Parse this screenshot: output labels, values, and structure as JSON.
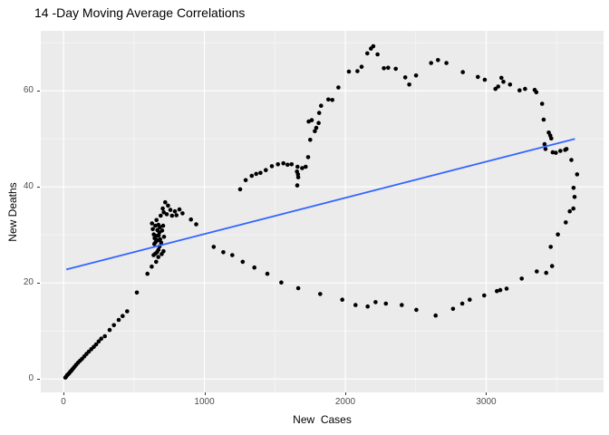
{
  "title": "14 -Day Moving Average Correlations",
  "chart_data": {
    "type": "scatter",
    "title": "14 -Day Moving Average Correlations",
    "xlabel": "New  Cases",
    "ylabel": "New Deaths",
    "x_ticks": [
      0,
      1000,
      2000,
      3000
    ],
    "y_ticks": [
      0,
      20,
      40,
      60
    ],
    "x_minor": [
      500,
      1500,
      2500,
      3500
    ],
    "y_minor": [
      10,
      30,
      50,
      70
    ],
    "xlim": [
      -161,
      3833
    ],
    "ylim": [
      -2.8,
      72.5
    ],
    "grid": true,
    "legend": "none",
    "panel_bg": "#EBEBEB",
    "grid_major_color": "#FFFFFF",
    "grid_minor_color": "#F5F5F5",
    "point_color": "#000000",
    "tick_label_color": "#4D4D4D",
    "trend_line": {
      "type": "linear",
      "color": "#3366FF",
      "x1": 20,
      "y1": 22.8,
      "x2": 3630,
      "y2": 50.0
    },
    "points": [
      [
        13,
        0.3
      ],
      [
        20,
        0.5
      ],
      [
        27,
        0.8
      ],
      [
        34,
        1.0
      ],
      [
        41,
        1.2
      ],
      [
        48,
        1.5
      ],
      [
        55,
        1.7
      ],
      [
        63,
        2.0
      ],
      [
        72,
        2.3
      ],
      [
        80,
        2.6
      ],
      [
        92,
        3.0
      ],
      [
        104,
        3.4
      ],
      [
        118,
        3.8
      ],
      [
        132,
        4.2
      ],
      [
        148,
        4.7
      ],
      [
        163,
        5.2
      ],
      [
        180,
        5.7
      ],
      [
        198,
        6.2
      ],
      [
        215,
        6.7
      ],
      [
        232,
        7.2
      ],
      [
        250,
        7.8
      ],
      [
        268,
        8.4
      ],
      [
        294,
        8.9
      ],
      [
        328,
        10.2
      ],
      [
        358,
        11.2
      ],
      [
        392,
        12.3
      ],
      [
        420,
        13.1
      ],
      [
        452,
        14.1
      ],
      [
        521,
        18.0
      ],
      [
        596,
        21.9
      ],
      [
        626,
        23.4
      ],
      [
        658,
        24.4
      ],
      [
        673,
        25.4
      ],
      [
        640,
        25.8
      ],
      [
        652,
        26.1
      ],
      [
        664,
        26.4
      ],
      [
        674,
        26.9
      ],
      [
        682,
        27.6
      ],
      [
        697,
        26.0
      ],
      [
        710,
        26.6
      ],
      [
        628,
        32.4
      ],
      [
        634,
        31.2
      ],
      [
        641,
        30.1
      ],
      [
        647,
        29.3
      ],
      [
        654,
        28.5
      ],
      [
        661,
        29.8
      ],
      [
        667,
        31.0
      ],
      [
        674,
        32.1
      ],
      [
        680,
        30.5
      ],
      [
        686,
        29.1
      ],
      [
        693,
        28.4
      ],
      [
        700,
        30.9
      ],
      [
        707,
        31.9
      ],
      [
        714,
        29.6
      ],
      [
        652,
        31.9
      ],
      [
        645,
        28.1
      ],
      [
        660,
        33.1
      ],
      [
        670,
        28.9
      ],
      [
        684,
        31.6
      ],
      [
        676,
        29.9
      ],
      [
        690,
        34.0
      ],
      [
        705,
        35.5
      ],
      [
        712,
        34.7
      ],
      [
        722,
        36.8
      ],
      [
        733,
        34.3
      ],
      [
        742,
        36.1
      ],
      [
        759,
        35.2
      ],
      [
        770,
        34.0
      ],
      [
        791,
        34.9
      ],
      [
        802,
        34.1
      ],
      [
        823,
        35.3
      ],
      [
        845,
        34.5
      ],
      [
        905,
        33.2
      ],
      [
        942,
        32.2
      ],
      [
        1066,
        27.5
      ],
      [
        1134,
        26.4
      ],
      [
        1198,
        25.8
      ],
      [
        1272,
        24.4
      ],
      [
        1355,
        23.2
      ],
      [
        1447,
        21.9
      ],
      [
        1546,
        20.1
      ],
      [
        1666,
        18.9
      ],
      [
        1822,
        17.7
      ],
      [
        1979,
        16.5
      ],
      [
        2073,
        15.4
      ],
      [
        2159,
        15.1
      ],
      [
        2215,
        16.0
      ],
      [
        2288,
        15.7
      ],
      [
        2401,
        15.4
      ],
      [
        2504,
        14.4
      ],
      [
        2641,
        13.2
      ],
      [
        2765,
        14.6
      ],
      [
        2830,
        15.7
      ],
      [
        2883,
        16.5
      ],
      [
        2986,
        17.4
      ],
      [
        3076,
        18.3
      ],
      [
        3100,
        18.5
      ],
      [
        3145,
        18.8
      ],
      [
        3252,
        20.9
      ],
      [
        3359,
        22.4
      ],
      [
        3426,
        22.1
      ],
      [
        3468,
        23.5
      ],
      [
        3458,
        27.5
      ],
      [
        3509,
        30.1
      ],
      [
        3565,
        32.6
      ],
      [
        3593,
        34.9
      ],
      [
        3619,
        35.5
      ],
      [
        3627,
        37.9
      ],
      [
        3620,
        39.8
      ],
      [
        3645,
        42.6
      ],
      [
        3605,
        45.6
      ],
      [
        1254,
        39.5
      ],
      [
        1293,
        41.4
      ],
      [
        1336,
        42.3
      ],
      [
        1368,
        42.7
      ],
      [
        1398,
        42.9
      ],
      [
        1436,
        43.5
      ],
      [
        1479,
        44.3
      ],
      [
        1522,
        44.7
      ],
      [
        1561,
        44.9
      ],
      [
        1590,
        44.6
      ],
      [
        1619,
        44.7
      ],
      [
        1657,
        43.2
      ],
      [
        1661,
        44.2
      ],
      [
        1664,
        42.6
      ],
      [
        1666,
        42.0
      ],
      [
        1659,
        40.3
      ],
      [
        1694,
        43.9
      ],
      [
        1719,
        44.2
      ],
      [
        1736,
        46.2
      ],
      [
        1751,
        49.8
      ],
      [
        1784,
        51.6
      ],
      [
        1794,
        52.3
      ],
      [
        1811,
        53.3
      ],
      [
        1740,
        53.6
      ],
      [
        1762,
        53.9
      ],
      [
        1815,
        55.4
      ],
      [
        1828,
        56.9
      ],
      [
        1880,
        58.2
      ],
      [
        1908,
        58.1
      ],
      [
        1951,
        60.7
      ],
      [
        2026,
        64.0
      ],
      [
        2086,
        64.1
      ],
      [
        2116,
        65.0
      ],
      [
        2156,
        67.8
      ],
      [
        2182,
        68.8
      ],
      [
        2199,
        69.3
      ],
      [
        2229,
        67.6
      ],
      [
        2274,
        64.7
      ],
      [
        2304,
        64.8
      ],
      [
        2358,
        64.6
      ],
      [
        2426,
        62.8
      ],
      [
        2454,
        61.3
      ],
      [
        2502,
        63.2
      ],
      [
        2609,
        65.8
      ],
      [
        2658,
        66.4
      ],
      [
        2718,
        65.8
      ],
      [
        2834,
        63.9
      ],
      [
        2941,
        62.9
      ],
      [
        2990,
        62.3
      ],
      [
        3066,
        60.4
      ],
      [
        3085,
        60.9
      ],
      [
        3108,
        62.7
      ],
      [
        3122,
        61.9
      ],
      [
        3169,
        61.3
      ],
      [
        3237,
        60.1
      ],
      [
        3276,
        60.4
      ],
      [
        3344,
        60.2
      ],
      [
        3356,
        59.7
      ],
      [
        3397,
        57.3
      ],
      [
        3408,
        54.0
      ],
      [
        3444,
        51.3
      ],
      [
        3455,
        50.7
      ],
      [
        3462,
        50.1
      ],
      [
        3414,
        48.9
      ],
      [
        3421,
        47.9
      ],
      [
        3472,
        47.2
      ],
      [
        3494,
        47.1
      ],
      [
        3526,
        47.5
      ],
      [
        3560,
        47.7
      ],
      [
        3570,
        47.9
      ]
    ]
  },
  "axes": {
    "x_tick_labels": [
      "0",
      "1000",
      "2000",
      "3000"
    ],
    "y_tick_labels": [
      "0",
      "20",
      "40",
      "60"
    ]
  }
}
